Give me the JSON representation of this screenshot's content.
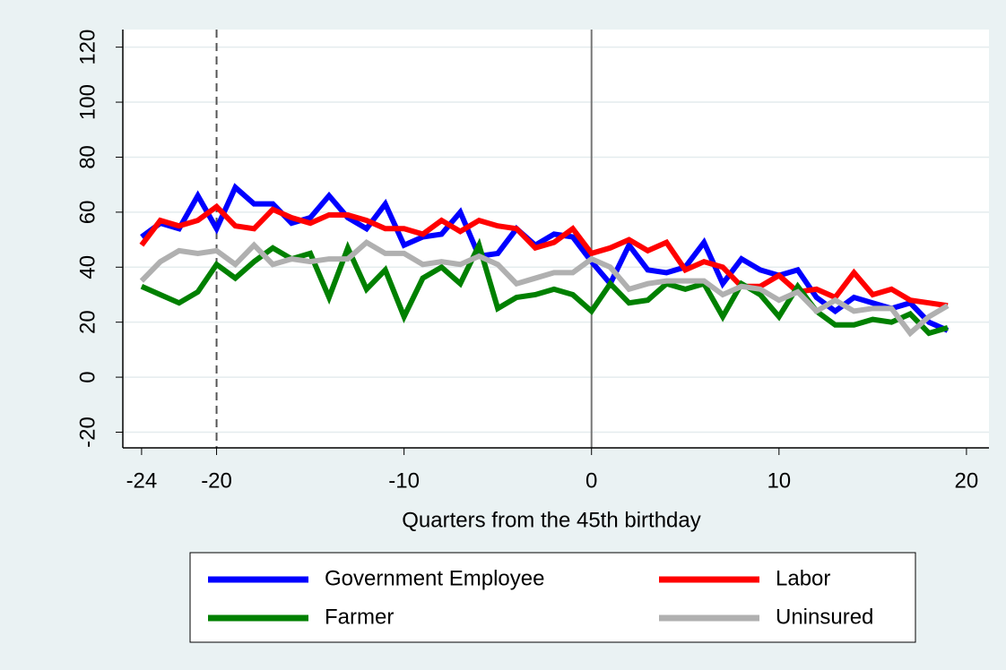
{
  "chart_data": {
    "type": "line",
    "x": [
      -24,
      -23,
      -22,
      -21,
      -20,
      -19,
      -18,
      -17,
      -16,
      -15,
      -14,
      -13,
      -12,
      -11,
      -10,
      -9,
      -8,
      -7,
      -6,
      -5,
      -4,
      -3,
      -2,
      -1,
      0,
      1,
      2,
      3,
      4,
      5,
      6,
      7,
      8,
      9,
      10,
      11,
      12,
      13,
      14,
      15,
      16,
      17,
      18,
      19
    ],
    "x_label": "Quarters from the 45th birthday",
    "series": [
      {
        "name": "Government Employee",
        "color": "#0000ff",
        "values": [
          51,
          56,
          54,
          66,
          54,
          69,
          63,
          63,
          56,
          58,
          66,
          58,
          54,
          63,
          48,
          51,
          52,
          60,
          44,
          45,
          54,
          48,
          52,
          51,
          42,
          34,
          48,
          39,
          38,
          40,
          49,
          34,
          43,
          39,
          37,
          39,
          29,
          24,
          29,
          27,
          25,
          27,
          20,
          17
        ]
      },
      {
        "name": "Labor",
        "color": "#ff0000",
        "values": [
          48,
          57,
          55,
          57,
          62,
          55,
          54,
          61,
          58,
          56,
          59,
          59,
          57,
          54,
          54,
          52,
          57,
          53,
          57,
          55,
          54,
          47,
          49,
          54,
          45,
          47,
          50,
          46,
          49,
          39,
          42,
          40,
          33,
          33,
          37,
          31,
          32,
          29,
          38,
          30,
          32,
          28,
          27,
          26
        ]
      },
      {
        "name": "Farmer",
        "color": "#008000",
        "values": [
          33,
          30,
          27,
          31,
          41,
          36,
          42,
          47,
          43,
          45,
          29,
          47,
          32,
          39,
          22,
          36,
          40,
          34,
          48,
          25,
          29,
          30,
          32,
          30,
          24,
          34,
          27,
          28,
          34,
          32,
          34,
          22,
          34,
          30,
          22,
          33,
          24,
          19,
          19,
          21,
          20,
          23,
          16,
          18
        ]
      },
      {
        "name": "Uninsured",
        "color": "#b0b0b0",
        "values": [
          35,
          42,
          46,
          45,
          46,
          41,
          48,
          41,
          43,
          42,
          43,
          43,
          49,
          45,
          45,
          41,
          42,
          41,
          44,
          41,
          34,
          36,
          38,
          38,
          43,
          40,
          32,
          34,
          35,
          35,
          35,
          30,
          33,
          32,
          28,
          31,
          24,
          28,
          24,
          25,
          25,
          16,
          22,
          26
        ]
      }
    ],
    "xlim": [
      -25,
      21.2
    ],
    "xticks": [
      -24,
      -20,
      -10,
      0,
      10,
      20
    ],
    "ylim": [
      -25.7,
      126.4
    ],
    "yticks": [
      -20,
      0,
      20,
      40,
      60,
      80,
      100,
      120
    ],
    "grid": true,
    "reference_lines": [
      {
        "x": -20,
        "style": "dashed"
      },
      {
        "x": 0,
        "style": "solid"
      }
    ],
    "legend": "bottom"
  }
}
